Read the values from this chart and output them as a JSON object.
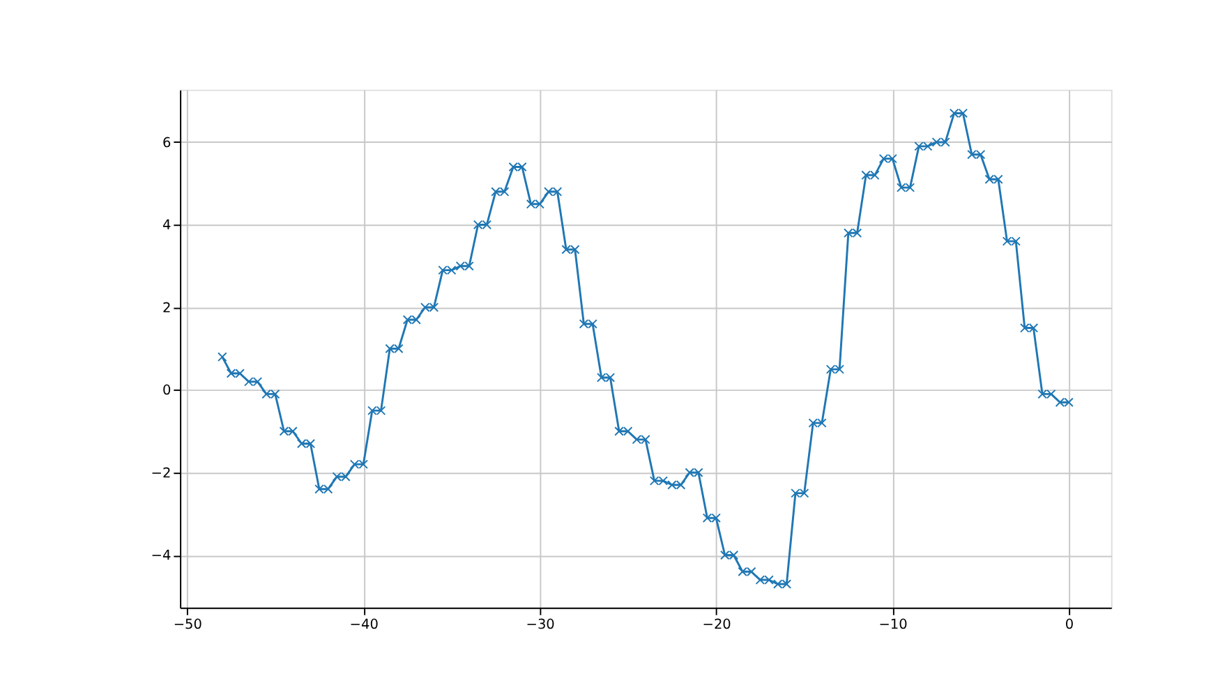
{
  "chart_data": {
    "type": "line",
    "x": [
      -48,
      -47.5,
      -47,
      -46.5,
      -46,
      -45.5,
      -45,
      -44.5,
      -44,
      -43.5,
      -43,
      -42.5,
      -42,
      -41.5,
      -41,
      -40.5,
      -40,
      -39.5,
      -39,
      -38.5,
      -38,
      -37.5,
      -37,
      -36.5,
      -36,
      -35.5,
      -35,
      -34.5,
      -34,
      -33.5,
      -33,
      -32.5,
      -32,
      -31.5,
      -31,
      -30.5,
      -30,
      -29.5,
      -29,
      -28.5,
      -28,
      -27.5,
      -27,
      -26.5,
      -26,
      -25.5,
      -25,
      -24.5,
      -24,
      -23.5,
      -23,
      -22.5,
      -22,
      -21.5,
      -21,
      -20.5,
      -20,
      -19.5,
      -19,
      -18.5,
      -18,
      -17.5,
      -17,
      -16.5,
      -16,
      -15.5,
      -15,
      -14.5,
      -14,
      -13.5,
      -13,
      -12.5,
      -12,
      -11.5,
      -11,
      -10.5,
      -10,
      -9.5,
      -9,
      -8.5,
      -8,
      -7.5,
      -7,
      -6.5,
      -6,
      -5.5,
      -5,
      -4.5,
      -4,
      -3.5,
      -3,
      -2.5,
      -2,
      -1.5,
      -1,
      -0.5,
      0
    ],
    "series": [
      {
        "color": "#1f77b4",
        "values": [
          0.8,
          0.4,
          0.4,
          0.2,
          0.2,
          -0.1,
          -0.1,
          -1,
          -1,
          -1.3,
          -1.3,
          -2.4,
          -2.4,
          -2.1,
          -2.1,
          -1.8,
          -1.8,
          -0.5,
          -0.5,
          1,
          1,
          1.7,
          1.7,
          2,
          2,
          2.9,
          2.9,
          3,
          3,
          4,
          4,
          4.8,
          4.8,
          5.4,
          5.4,
          4.5,
          4.5,
          4.8,
          4.8,
          3.4,
          3.4,
          1.6,
          1.6,
          0.3,
          0.3,
          -1,
          -1,
          -1.2,
          -1.2,
          -2.2,
          -2.2,
          -2.3,
          -2.3,
          -2,
          -2,
          -3.1,
          -3.1,
          -4,
          -4,
          -4.4,
          -4.4,
          -4.6,
          -4.6,
          -4.7,
          -4.7,
          -2.5,
          -2.5,
          -0.8,
          -0.8,
          0.5,
          0.5,
          3.8,
          3.8,
          5.2,
          5.2,
          5.6,
          5.6,
          4.9,
          4.9,
          5.9,
          5.9,
          6,
          6,
          6.7,
          6.7,
          5.7,
          5.7,
          5.1,
          5.1,
          3.6,
          3.6,
          1.5,
          1.5,
          -0.1,
          -0.1,
          -0.3,
          -0.3
        ]
      }
    ],
    "xlim": [
      -50.4,
      2.4
    ],
    "ylim": [
      -5.27,
      7.27
    ],
    "xticks": [
      -50,
      -40,
      -30,
      -20,
      -10,
      0
    ],
    "yticks": [
      -4,
      -2,
      0,
      2,
      4,
      6
    ],
    "grid": true,
    "marker": "cross",
    "line_style": "solid"
  }
}
